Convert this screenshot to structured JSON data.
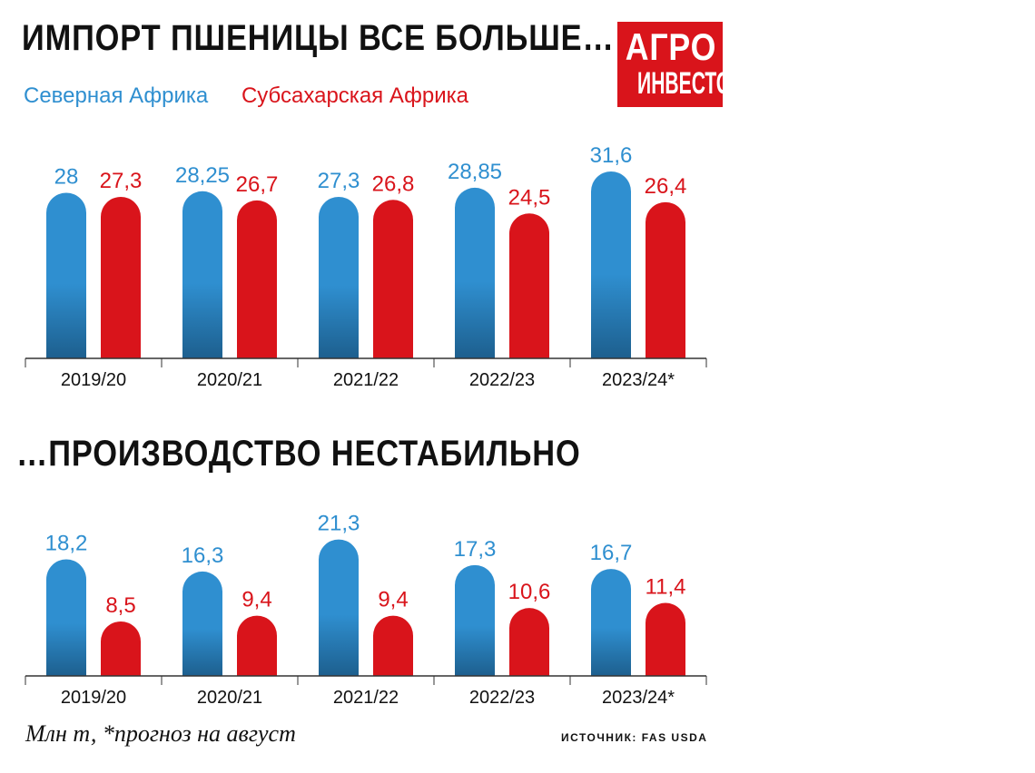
{
  "titles": {
    "top": "ИМПОРТ ПШЕНИЦЫ ВСЕ БОЛЬШЕ…",
    "bottom": "…ПРОИЗВОДСТВО НЕСТАБИЛЬНО"
  },
  "logo": {
    "line1": "АГРО",
    "line2": "ИНВЕСТОР",
    "color": "#d9141b"
  },
  "legend": {
    "north": "Северная Африка",
    "south": "Субсахарская Африка"
  },
  "colors": {
    "north": "#2f8fd0",
    "north_dark": "#1d5f8e",
    "south": "#d9141b"
  },
  "footer": {
    "unit": "Млн т, *прогноз на август",
    "source": "ИСТОЧНИК: FAS USDA"
  },
  "chart_data": [
    {
      "type": "bar",
      "categories": [
        "2019/20",
        "2020/21",
        "2021/22",
        "2022/23",
        "2023/24*"
      ],
      "series": [
        {
          "name": "Северная Африка",
          "values": [
            28,
            28.25,
            27.3,
            28.85,
            31.6
          ],
          "labels": [
            "28",
            "28,25",
            "27,3",
            "28,85",
            "31,6"
          ]
        },
        {
          "name": "Субсахарская Африка",
          "values": [
            27.3,
            26.7,
            26.8,
            24.5,
            26.4
          ],
          "labels": [
            "27,3",
            "26,7",
            "26,8",
            "24,5",
            "26,4"
          ]
        }
      ]
    },
    {
      "type": "bar",
      "categories": [
        "2019/20",
        "2020/21",
        "2021/22",
        "2022/23",
        "2023/24*"
      ],
      "series": [
        {
          "name": "Северная Африка",
          "values": [
            18.2,
            16.3,
            21.3,
            17.3,
            16.7
          ],
          "labels": [
            "18,2",
            "16,3",
            "21,3",
            "17,3",
            "16,7"
          ]
        },
        {
          "name": "Субсахарская Африка",
          "values": [
            8.5,
            9.4,
            9.4,
            10.6,
            11.4
          ],
          "labels": [
            "8,5",
            "9,4",
            "9,4",
            "10,6",
            "11,4"
          ]
        }
      ]
    }
  ]
}
